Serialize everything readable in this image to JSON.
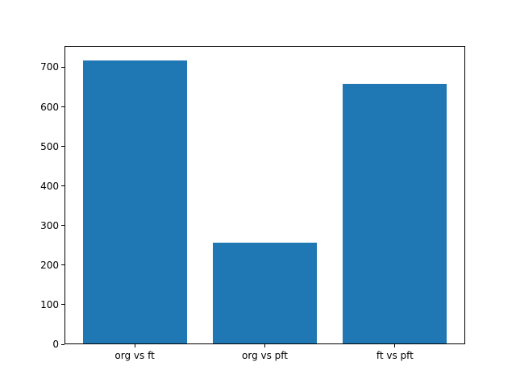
{
  "figure": {
    "background": "#ffffff",
    "frame_color": "#000000"
  },
  "chart_data": {
    "type": "bar",
    "categories": [
      "org vs ft",
      "org vs pft",
      "ft vs pft"
    ],
    "values": [
      718,
      257,
      659
    ],
    "title": "",
    "xlabel": "",
    "ylabel": "",
    "ylim": [
      0,
      754
    ],
    "yticks": [
      0,
      100,
      200,
      300,
      400,
      500,
      600,
      700
    ],
    "bar_color": "#1f77b4",
    "bar_width": 0.8,
    "grid": false,
    "legend": null
  }
}
